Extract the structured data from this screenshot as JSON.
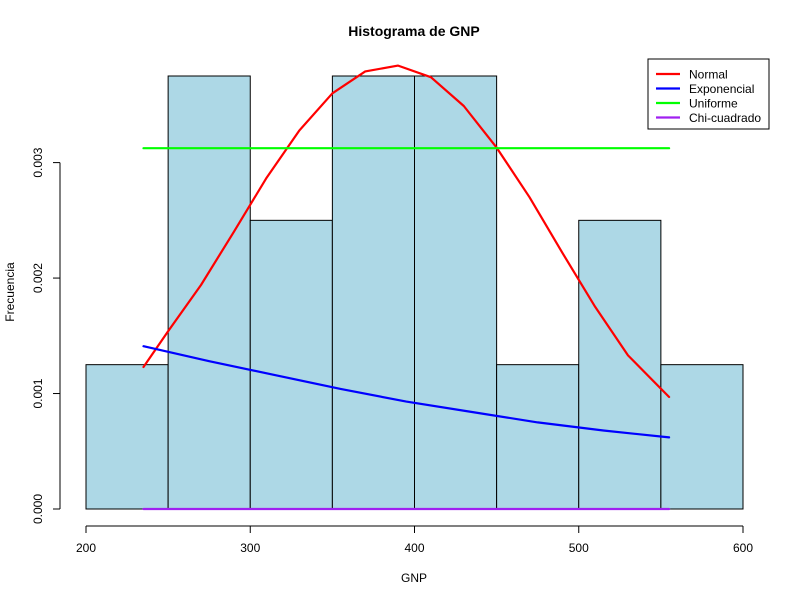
{
  "chart_data": {
    "type": "bar",
    "title": "Histograma de GNP",
    "xlabel": "GNP",
    "ylabel": "Frecuencia",
    "xlim": [
      200,
      600
    ],
    "ylim": [
      0,
      0.00375
    ],
    "x_ticks": [
      200,
      300,
      400,
      500,
      600
    ],
    "x_tick_labels": [
      "200",
      "300",
      "400",
      "500",
      "600"
    ],
    "y_ticks": [
      0,
      0.001,
      0.002,
      0.003
    ],
    "y_tick_labels": [
      "0.000",
      "0.001",
      "0.002",
      "0.003"
    ],
    "grid": false,
    "legend_position": "top-right",
    "bar_color": "#add8e6",
    "bins": [
      {
        "start": 200,
        "end": 250,
        "density": 0.00125
      },
      {
        "start": 250,
        "end": 300,
        "density": 0.00375
      },
      {
        "start": 300,
        "end": 350,
        "density": 0.0025
      },
      {
        "start": 350,
        "end": 400,
        "density": 0.00375
      },
      {
        "start": 400,
        "end": 450,
        "density": 0.00375
      },
      {
        "start": 450,
        "end": 500,
        "density": 0.00125
      },
      {
        "start": 500,
        "end": 550,
        "density": 0.0025
      },
      {
        "start": 550,
        "end": 600,
        "density": 0.00125
      }
    ],
    "series": [
      {
        "name": "Normal",
        "color": "#ff0000",
        "x": [
          235,
          250,
          270,
          290,
          310,
          330,
          350,
          370,
          390,
          410,
          430,
          450,
          470,
          490,
          510,
          530,
          555
        ],
        "values": [
          0.00123,
          0.00154,
          0.00194,
          0.0024,
          0.00287,
          0.00328,
          0.0036,
          0.00379,
          0.00384,
          0.00374,
          0.00349,
          0.00313,
          0.0027,
          0.00222,
          0.00175,
          0.00133,
          0.00097
        ]
      },
      {
        "name": "Exponencial",
        "color": "#0000ff",
        "x": [
          235,
          275,
          315,
          355,
          395,
          435,
          475,
          515,
          555
        ],
        "values": [
          0.00141,
          0.00128,
          0.00116,
          0.00104,
          0.00093,
          0.00084,
          0.00075,
          0.00068,
          0.00062
        ]
      },
      {
        "name": "Uniforme",
        "color": "#00ff00",
        "x": [
          235,
          555
        ],
        "values": [
          0.003125,
          0.003125
        ]
      },
      {
        "name": "Chi-cuadrado",
        "color": "#a020f0",
        "x": [
          235,
          555
        ],
        "values": [
          0.0,
          0.0
        ]
      }
    ]
  }
}
